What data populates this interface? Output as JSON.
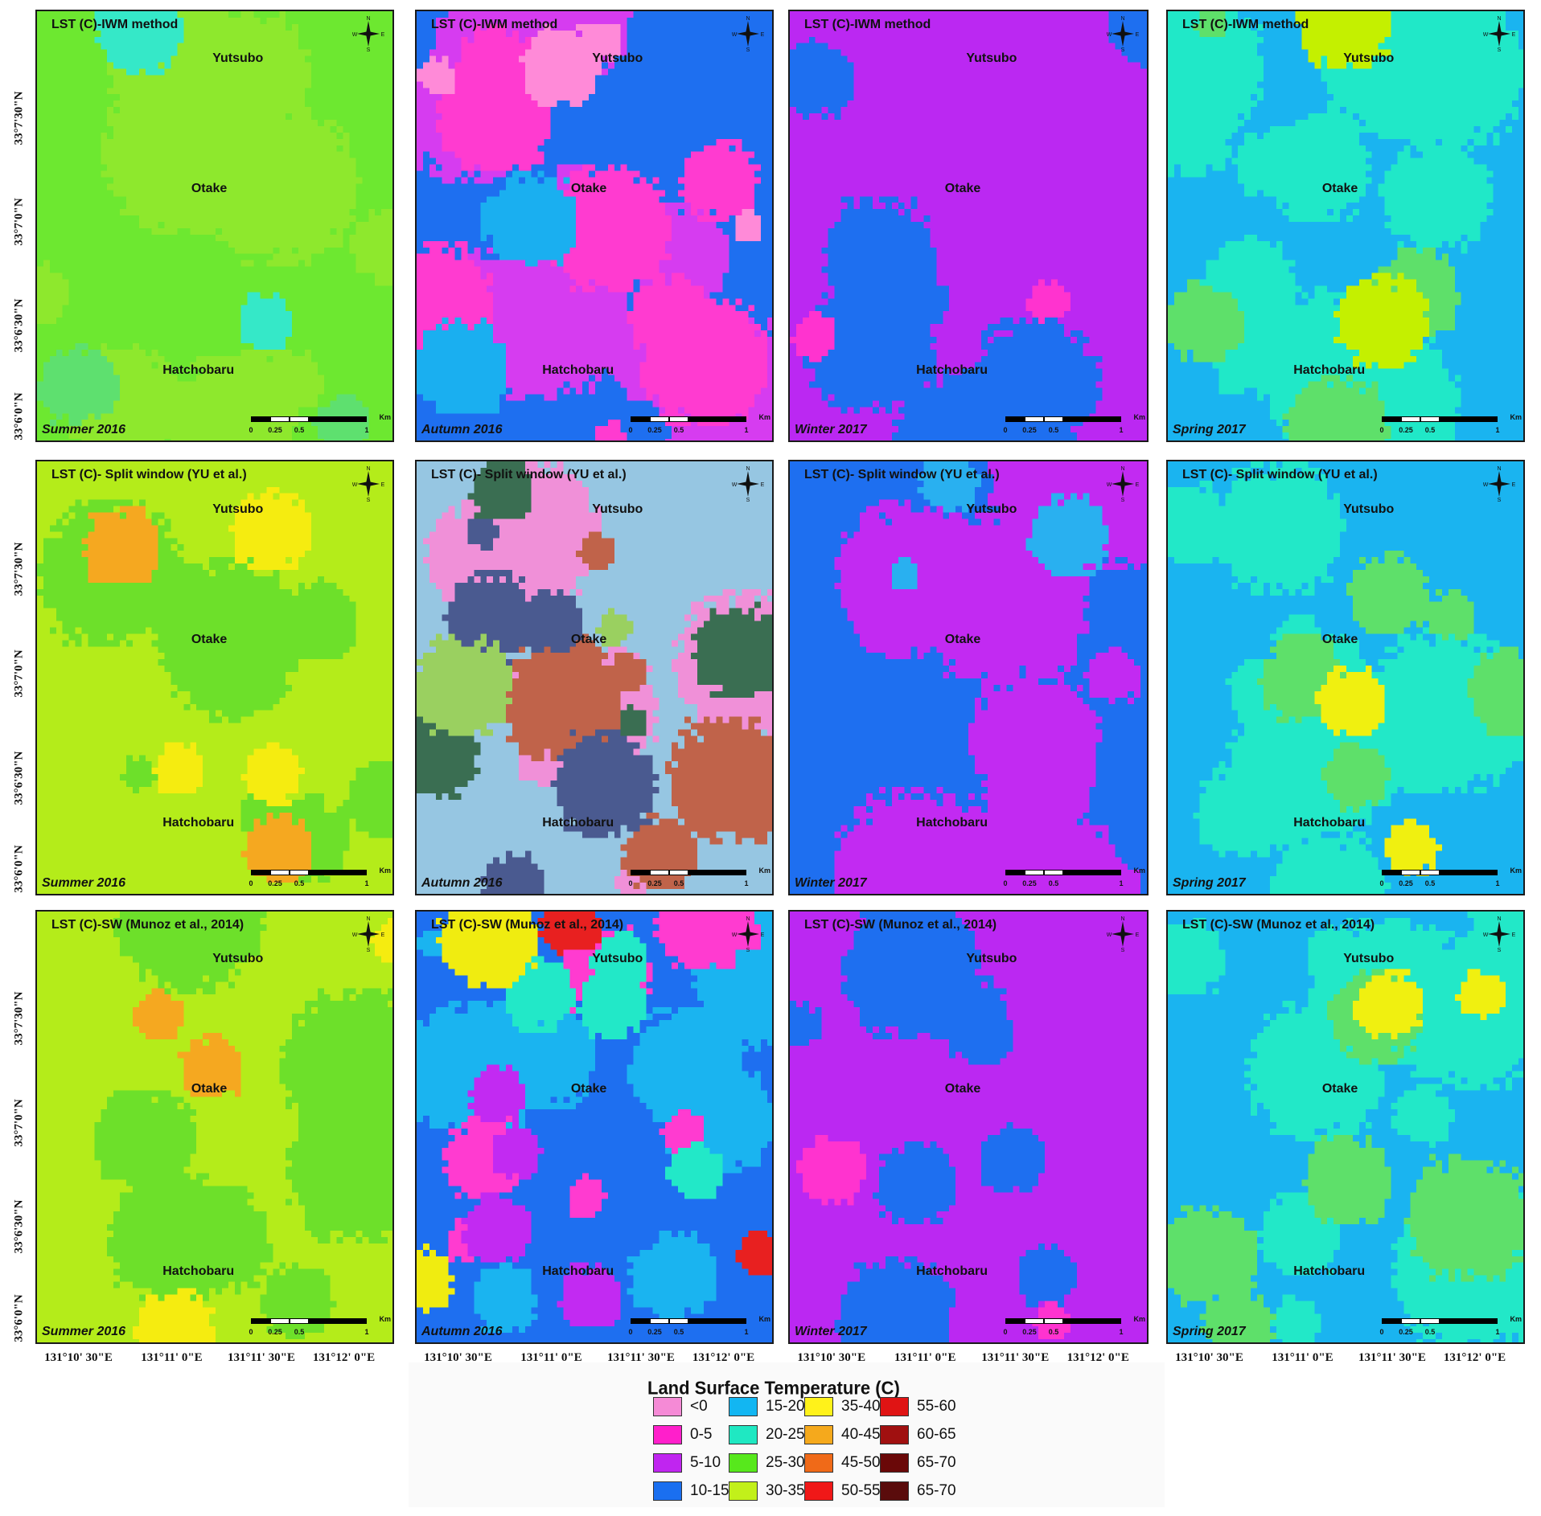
{
  "places": [
    "Yutsubo",
    "Otake",
    "Hatchobaru"
  ],
  "compass": {
    "n": "N",
    "s": "S",
    "e": "E",
    "w": "W"
  },
  "scale": {
    "ticks": [
      "0",
      "0.25",
      "0.5",
      "1"
    ],
    "unit": "Km"
  },
  "rows": [
    {
      "method": "IWM",
      "panels": [
        {
          "title": "LST (C)-IWM method",
          "season": "Summer 2016",
          "base": "#6de830",
          "spots": [
            [
              "#8ee82d",
              0.55
            ],
            [
              "#5ee06f",
              0.1
            ],
            [
              "#35e8c8",
              0.06
            ]
          ]
        },
        {
          "title": "LST (C)-IWM method",
          "season": "Autumn 2016",
          "base": "#1e6ff0",
          "spots": [
            [
              "#d63cf0",
              0.55
            ],
            [
              "#ff3bd0",
              0.35
            ],
            [
              "#ff8ad8",
              0.18
            ],
            [
              "#1aaff0",
              0.1
            ]
          ]
        },
        {
          "title": "LST (C)-IWM method",
          "season": "Winter 2017",
          "base": "#bb28f2",
          "spots": [
            [
              "#1e6ff0",
              0.4
            ],
            [
              "#ff33cf",
              0.08
            ]
          ]
        },
        {
          "title": "LST (C)-IWM method",
          "season": "Spring 2017",
          "base": "#1ab4f0",
          "spots": [
            [
              "#20e8c8",
              0.55
            ],
            [
              "#5ee06a",
              0.2
            ],
            [
              "#c4f000",
              0.06
            ]
          ]
        }
      ]
    },
    {
      "method": "Split window",
      "panels": [
        {
          "title": "LST (C)- Split window (YU et al.)",
          "season": "Summer 2016",
          "base": "#b4ec1a",
          "spots": [
            [
              "#6de02a",
              0.4
            ],
            [
              "#f5ec10",
              0.12
            ],
            [
              "#f5a820",
              0.03
            ]
          ]
        },
        {
          "title": "LST (C)- Split window (YU et al.)",
          "season": "Autumn 2016",
          "base": "#96c6e2",
          "spots": [
            [
              "#f090d8",
              0.45
            ],
            [
              "#c0634a",
              0.3
            ],
            [
              "#4a5a90",
              0.22
            ],
            [
              "#3a6e52",
              0.16
            ],
            [
              "#9ad060",
              0.1
            ]
          ]
        },
        {
          "title": "LST (C)- Split window (YU et al.)",
          "season": "Winter 2017",
          "base": "#1e6ff0",
          "spots": [
            [
              "#c22af2",
              0.55
            ],
            [
              "#29b0f0",
              0.12
            ]
          ]
        },
        {
          "title": "LST (C)- Split window (YU et al.)",
          "season": "Spring 2017",
          "base": "#1ab4f0",
          "spots": [
            [
              "#22e8c8",
              0.55
            ],
            [
              "#5ee06a",
              0.25
            ],
            [
              "#f0f010",
              0.07
            ]
          ]
        }
      ]
    },
    {
      "method": "SW Munoz",
      "panels": [
        {
          "title": "LST (C)-SW (Munoz et al., 2014)",
          "season": "Summer 2016",
          "base": "#b4ec1a",
          "spots": [
            [
              "#6de02a",
              0.45
            ],
            [
              "#f5ec10",
              0.08
            ],
            [
              "#f5a820",
              0.02
            ]
          ]
        },
        {
          "title": "LST (C)-SW (Munoz et al., 2014)",
          "season": "Autumn 2016",
          "base": "#1e6ff0",
          "spots": [
            [
              "#1ab4f0",
              0.5
            ],
            [
              "#ff3bd0",
              0.3
            ],
            [
              "#c22af2",
              0.2
            ],
            [
              "#22e8c8",
              0.16
            ],
            [
              "#f0ec10",
              0.1
            ],
            [
              "#e82020",
              0.04
            ]
          ]
        },
        {
          "title": "LST (C)-SW (Munoz et al., 2014)",
          "season": "Winter 2017",
          "base": "#bb28f2",
          "spots": [
            [
              "#1e6ff0",
              0.4
            ],
            [
              "#ff33cf",
              0.06
            ]
          ]
        },
        {
          "title": "LST (C)-SW (Munoz et al., 2014)",
          "season": "Spring 2017",
          "base": "#1ab4f0",
          "spots": [
            [
              "#22e8c8",
              0.55
            ],
            [
              "#5ee06a",
              0.22
            ],
            [
              "#f0f010",
              0.05
            ]
          ]
        }
      ]
    }
  ],
  "lat_labels": [
    "33°7'30\"N",
    "33°7'0\"N",
    "33°6'30\"N",
    "33°6'0\"N"
  ],
  "lon_labels": [
    "131°10' 30\"E",
    "131°11' 0\"E",
    "131°11' 30\"E",
    "131°12' 0\"E"
  ],
  "legend": {
    "title": "Land Surface Temperature (C)",
    "items": [
      {
        "label": "<0",
        "color": "#f58ad6"
      },
      {
        "label": "0-5",
        "color": "#ff1fcb"
      },
      {
        "label": "5-10",
        "color": "#c025f0"
      },
      {
        "label": "10-15",
        "color": "#1a6ff0"
      },
      {
        "label": "15-20",
        "color": "#12b6f2"
      },
      {
        "label": "20-25",
        "color": "#1fe8c2"
      },
      {
        "label": "25-30",
        "color": "#57e81c"
      },
      {
        "label": "30-35",
        "color": "#c2f01a"
      },
      {
        "label": "35-40",
        "color": "#fff21a"
      },
      {
        "label": "40-45",
        "color": "#f5a91c"
      },
      {
        "label": "45-50",
        "color": "#f06a18"
      },
      {
        "label": "50-55",
        "color": "#f01818"
      },
      {
        "label": "55-60",
        "color": "#e01414"
      },
      {
        "label": "60-65",
        "color": "#a01010"
      },
      {
        "label": "65-70",
        "color": "#6a0808"
      },
      {
        "label": "65-70",
        "color": "#5a0c0c"
      }
    ]
  }
}
